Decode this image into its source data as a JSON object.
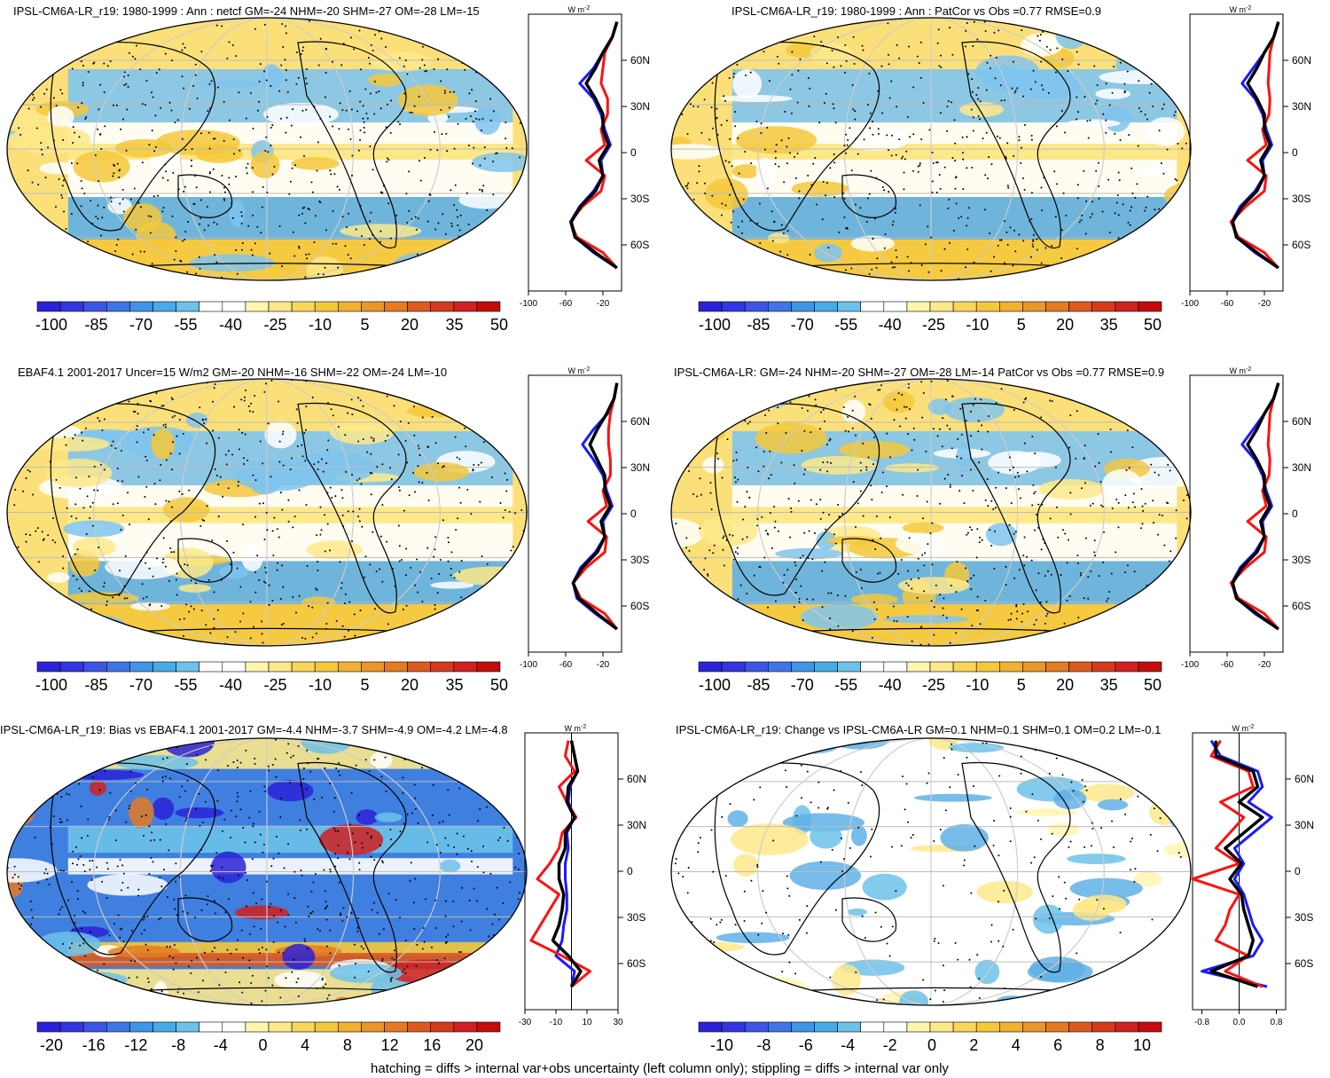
{
  "footer": "hatching = diffs > internal var+obs uncertainty (left column only); stippling = diffs > internal var only",
  "zonal_unit": "W m",
  "zonal_unit_sup": "-2",
  "lat_labels": [
    "60N",
    "30N",
    "0",
    "30S",
    "60S"
  ],
  "colors": {
    "blue_deep": "#2b22d8",
    "blue_mid": "#3f8fe0",
    "blue_light": "#5fb0e6",
    "white": "#ffffff",
    "yellow_light": "#fce98a",
    "yellow": "#f5c83a",
    "orange": "#e8962a",
    "red": "#d02020",
    "line_blue": "#1a1aff",
    "line_red": "#ff1010",
    "line_black": "#000000"
  },
  "panels": [
    {
      "title": "IPSL-CM6A-LR_r19: 1980-1999 : Ann : netcf GM=-24 NHM=-20 SHM=-27 OM=-28 LM=-15",
      "cbar_labels": [
        "-100",
        "-85",
        "-70",
        "-55",
        "-40",
        "-25",
        "-10",
        "5",
        "20",
        "35",
        "50"
      ],
      "zonal_ticks": [
        "-100",
        "-60",
        "-20"
      ]
    },
    {
      "title": "IPSL-CM6A-LR_r19: 1980-1999 : Ann : PatCor vs Obs =0.77 RMSE=0.9",
      "cbar_labels": [
        "-100",
        "-85",
        "-70",
        "-55",
        "-40",
        "-25",
        "-10",
        "5",
        "20",
        "35",
        "50"
      ],
      "zonal_ticks": [
        "-100",
        "-60",
        "-20"
      ]
    },
    {
      "title": "EBAF4.1 2001-2017 Uncer=15 W/m2 GM=-20 NHM=-16 SHM=-22 OM=-24 LM=-10",
      "cbar_labels": [
        "-100",
        "-85",
        "-70",
        "-55",
        "-40",
        "-25",
        "-10",
        "5",
        "20",
        "35",
        "50"
      ],
      "zonal_ticks": [
        "-100",
        "-60",
        "-20"
      ]
    },
    {
      "title": "IPSL-CM6A-LR: GM=-24 NHM=-20 SHM=-27 OM=-28 LM=-14 PatCor vs Obs =0.77 RMSE=0.9",
      "cbar_labels": [
        "-100",
        "-85",
        "-70",
        "-55",
        "-40",
        "-25",
        "-10",
        "5",
        "20",
        "35",
        "50"
      ],
      "zonal_ticks": [
        "-100",
        "-60",
        "-20"
      ]
    },
    {
      "title": "IPSL-CM6A-LR_r19: Bias vs EBAF4.1 2001-2017 GM=-4.4 NHM=-3.7 SHM=-4.9 OM=-4.2 LM=-4.8",
      "cbar_labels": [
        "-20",
        "-16",
        "-12",
        "-8",
        "-4",
        "0",
        "4",
        "8",
        "12",
        "16",
        "20"
      ],
      "zonal_ticks": [
        "-30",
        "-10",
        "10",
        "30"
      ]
    },
    {
      "title": "IPSL-CM6A-LR_r19: Change vs IPSL-CM6A-LR GM=0.1 NHM=0.1 SHM=0.1 OM=0.2 LM=-0.1",
      "cbar_labels": [
        "-10",
        "-8",
        "-6",
        "-4",
        "-2",
        "0",
        "2",
        "4",
        "6",
        "8",
        "10"
      ],
      "zonal_ticks": [
        "-0.8",
        "0.0",
        "0.8"
      ]
    }
  ],
  "chart_data": [
    {
      "type": "line",
      "title": "IPSL-CM6A-LR_r19: 1980-1999 : Ann : netcf GM=-24 NHM=-20 SHM=-27 OM=-28 LM=-15",
      "xlim": [
        -100,
        0
      ],
      "ylim": [
        -90,
        90
      ],
      "y": [
        85,
        75,
        65,
        55,
        45,
        35,
        25,
        15,
        5,
        -5,
        -15,
        -25,
        -35,
        -45,
        -55,
        -65,
        -75
      ],
      "series": [
        {
          "color": "#1a1aff",
          "values": [
            -5,
            -10,
            -20,
            -30,
            -45,
            -30,
            -22,
            -18,
            -12,
            -22,
            -20,
            -30,
            -45,
            -55,
            -50,
            -30,
            -5
          ]
        },
        {
          "color": "#ff1010",
          "values": [
            -5,
            -10,
            -18,
            -20,
            -22,
            -15,
            -15,
            -22,
            -18,
            -38,
            -18,
            -22,
            -42,
            -55,
            -48,
            -20,
            -5
          ]
        },
        {
          "color": "#000000",
          "values": [
            -5,
            -10,
            -20,
            -28,
            -38,
            -28,
            -20,
            -20,
            -14,
            -24,
            -20,
            -28,
            -44,
            -54,
            -50,
            -28,
            -5
          ]
        }
      ]
    },
    {
      "type": "line",
      "title": "IPSL-CM6A-LR_r19: 1980-1999 : Ann : PatCor vs Obs =0.77 RMSE=0.9",
      "xlim": [
        -100,
        0
      ],
      "ylim": [
        -90,
        90
      ],
      "y": [
        85,
        75,
        65,
        55,
        45,
        35,
        25,
        15,
        5,
        -5,
        -15,
        -25,
        -35,
        -45,
        -55,
        -65,
        -75
      ],
      "series": [
        {
          "color": "#1a1aff",
          "values": [
            -5,
            -10,
            -20,
            -32,
            -44,
            -30,
            -22,
            -18,
            -12,
            -22,
            -20,
            -30,
            -46,
            -55,
            -50,
            -30,
            -5
          ]
        },
        {
          "color": "#ff1010",
          "values": [
            -5,
            -10,
            -14,
            -15,
            -16,
            -14,
            -15,
            -22,
            -18,
            -38,
            -18,
            -20,
            -40,
            -56,
            -48,
            -20,
            -5
          ]
        },
        {
          "color": "#000000",
          "values": [
            -5,
            -10,
            -20,
            -28,
            -38,
            -28,
            -20,
            -20,
            -14,
            -24,
            -20,
            -28,
            -44,
            -54,
            -50,
            -28,
            -5
          ]
        }
      ]
    },
    {
      "type": "line",
      "title": "EBAF4.1 2001-2017 Uncer=15 W/m2 GM=-20 NHM=-16 SHM=-22 OM=-24 LM=-10",
      "xlim": [
        -100,
        0
      ],
      "ylim": [
        -90,
        90
      ],
      "y": [
        85,
        75,
        65,
        55,
        45,
        35,
        25,
        15,
        5,
        -5,
        -15,
        -25,
        -35,
        -45,
        -55,
        -65,
        -75
      ],
      "series": [
        {
          "color": "#1a1aff",
          "values": [
            -5,
            -8,
            -15,
            -30,
            -42,
            -30,
            -20,
            -16,
            -10,
            -20,
            -18,
            -28,
            -44,
            -52,
            -48,
            -28,
            -5
          ]
        },
        {
          "color": "#ff1010",
          "values": [
            -5,
            -8,
            -12,
            -14,
            -14,
            -12,
            -12,
            -20,
            -16,
            -36,
            -16,
            -18,
            -38,
            -52,
            -44,
            -18,
            -5
          ]
        },
        {
          "color": "#000000",
          "values": [
            -5,
            -8,
            -16,
            -26,
            -34,
            -26,
            -18,
            -18,
            -12,
            -22,
            -18,
            -26,
            -42,
            -52,
            -46,
            -26,
            -5
          ]
        }
      ]
    },
    {
      "type": "line",
      "title": "IPSL-CM6A-LR: GM=-24 NHM=-20 SHM=-27 OM=-28 LM=-14 PatCor vs Obs =0.77 RMSE=0.9",
      "xlim": [
        -100,
        0
      ],
      "ylim": [
        -90,
        90
      ],
      "y": [
        85,
        75,
        65,
        55,
        45,
        35,
        25,
        15,
        5,
        -5,
        -15,
        -25,
        -35,
        -45,
        -55,
        -65,
        -75
      ],
      "series": [
        {
          "color": "#1a1aff",
          "values": [
            -5,
            -10,
            -20,
            -32,
            -44,
            -30,
            -22,
            -18,
            -12,
            -22,
            -20,
            -30,
            -46,
            -55,
            -50,
            -30,
            -5
          ]
        },
        {
          "color": "#ff1010",
          "values": [
            -5,
            -10,
            -14,
            -15,
            -16,
            -14,
            -15,
            -22,
            -18,
            -38,
            -18,
            -20,
            -40,
            -56,
            -48,
            -20,
            -5
          ]
        },
        {
          "color": "#000000",
          "values": [
            -5,
            -10,
            -20,
            -28,
            -38,
            -28,
            -20,
            -20,
            -14,
            -24,
            -20,
            -28,
            -44,
            -54,
            -50,
            -28,
            -5
          ]
        }
      ]
    },
    {
      "type": "line",
      "title": "IPSL-CM6A-LR_r19: Bias vs EBAF4.1 2001-2017 GM=-4.4 NHM=-3.7 SHM=-4.9 OM=-4.2 LM=-4.8",
      "xlim": [
        -30,
        30
      ],
      "ylim": [
        -90,
        90
      ],
      "y": [
        85,
        75,
        65,
        55,
        45,
        35,
        25,
        15,
        5,
        -5,
        -15,
        -25,
        -35,
        -45,
        -55,
        -65,
        -75
      ],
      "series": [
        {
          "color": "#1a1aff",
          "values": [
            0,
            2,
            4,
            -1,
            -2,
            2,
            -3,
            -2,
            -4,
            -4,
            -3,
            -3,
            -5,
            -6,
            -10,
            2,
            0
          ]
        },
        {
          "color": "#ff1010",
          "values": [
            -2,
            -4,
            2,
            -8,
            -3,
            3,
            -6,
            -8,
            -14,
            -22,
            -8,
            -14,
            -20,
            -26,
            -6,
            12,
            0
          ]
        },
        {
          "color": "#000000",
          "values": [
            0,
            2,
            4,
            -2,
            -3,
            2,
            -4,
            -4,
            -8,
            -8,
            -5,
            -6,
            -8,
            -12,
            -2,
            6,
            0
          ]
        }
      ]
    },
    {
      "type": "line",
      "title": "IPSL-CM6A-LR_r19: Change vs IPSL-CM6A-LR GM=0.1 NHM=0.1 SHM=0.1 OM=0.2 LM=-0.1",
      "xlim": [
        -1,
        1
      ],
      "ylim": [
        -90,
        90
      ],
      "y": [
        85,
        75,
        65,
        55,
        45,
        35,
        25,
        15,
        5,
        -5,
        -15,
        -25,
        -35,
        -45,
        -55,
        -65,
        -75
      ],
      "series": [
        {
          "color": "#1a1aff",
          "values": [
            -0.6,
            -0.4,
            0.4,
            0.5,
            0.2,
            0.7,
            0.3,
            -0.1,
            0.1,
            -0.1,
            0.1,
            0.2,
            0.3,
            0.5,
            0.3,
            -0.8,
            0.6
          ]
        },
        {
          "color": "#ff1010",
          "values": [
            -0.4,
            -0.6,
            0.2,
            0.3,
            -0.4,
            0.1,
            -0.2,
            -0.5,
            0.0,
            -1.0,
            0.0,
            -0.2,
            -0.3,
            -0.5,
            0.2,
            -0.3,
            0.5
          ]
        },
        {
          "color": "#000000",
          "values": [
            -0.5,
            -0.5,
            0.3,
            0.4,
            0.0,
            0.5,
            0.1,
            -0.3,
            0.05,
            -0.2,
            0.05,
            0.1,
            0.2,
            0.3,
            0.2,
            -0.6,
            0.4
          ]
        }
      ]
    }
  ]
}
